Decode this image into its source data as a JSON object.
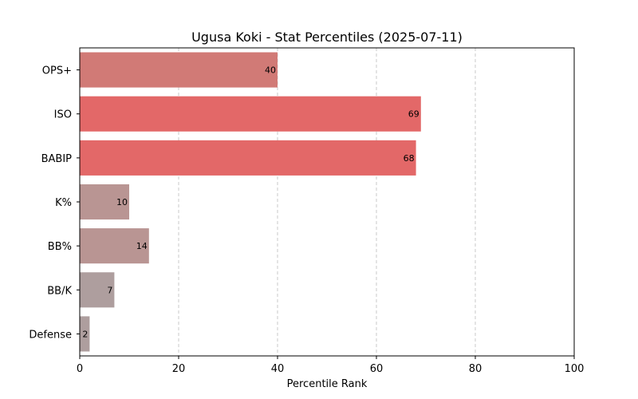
{
  "chart_data": {
    "type": "bar",
    "orientation": "horizontal",
    "title": "Ugusa Koki - Stat Percentiles (2025-07-11)",
    "xlabel": "Percentile Rank",
    "ylabel": "",
    "xlim": [
      0,
      100
    ],
    "xticks": [
      0,
      20,
      40,
      60,
      80,
      100
    ],
    "grid": "x-dashed",
    "categories": [
      "OPS+",
      "ISO",
      "BABIP",
      "K%",
      "BB%",
      "BB/K",
      "Defense"
    ],
    "values": [
      40,
      69,
      68,
      10,
      14,
      7,
      2
    ],
    "colors": [
      "#d17a76",
      "#e36868",
      "#e36868",
      "#b99593",
      "#b99593",
      "#ae9e9e",
      "#ae9e9e"
    ]
  }
}
